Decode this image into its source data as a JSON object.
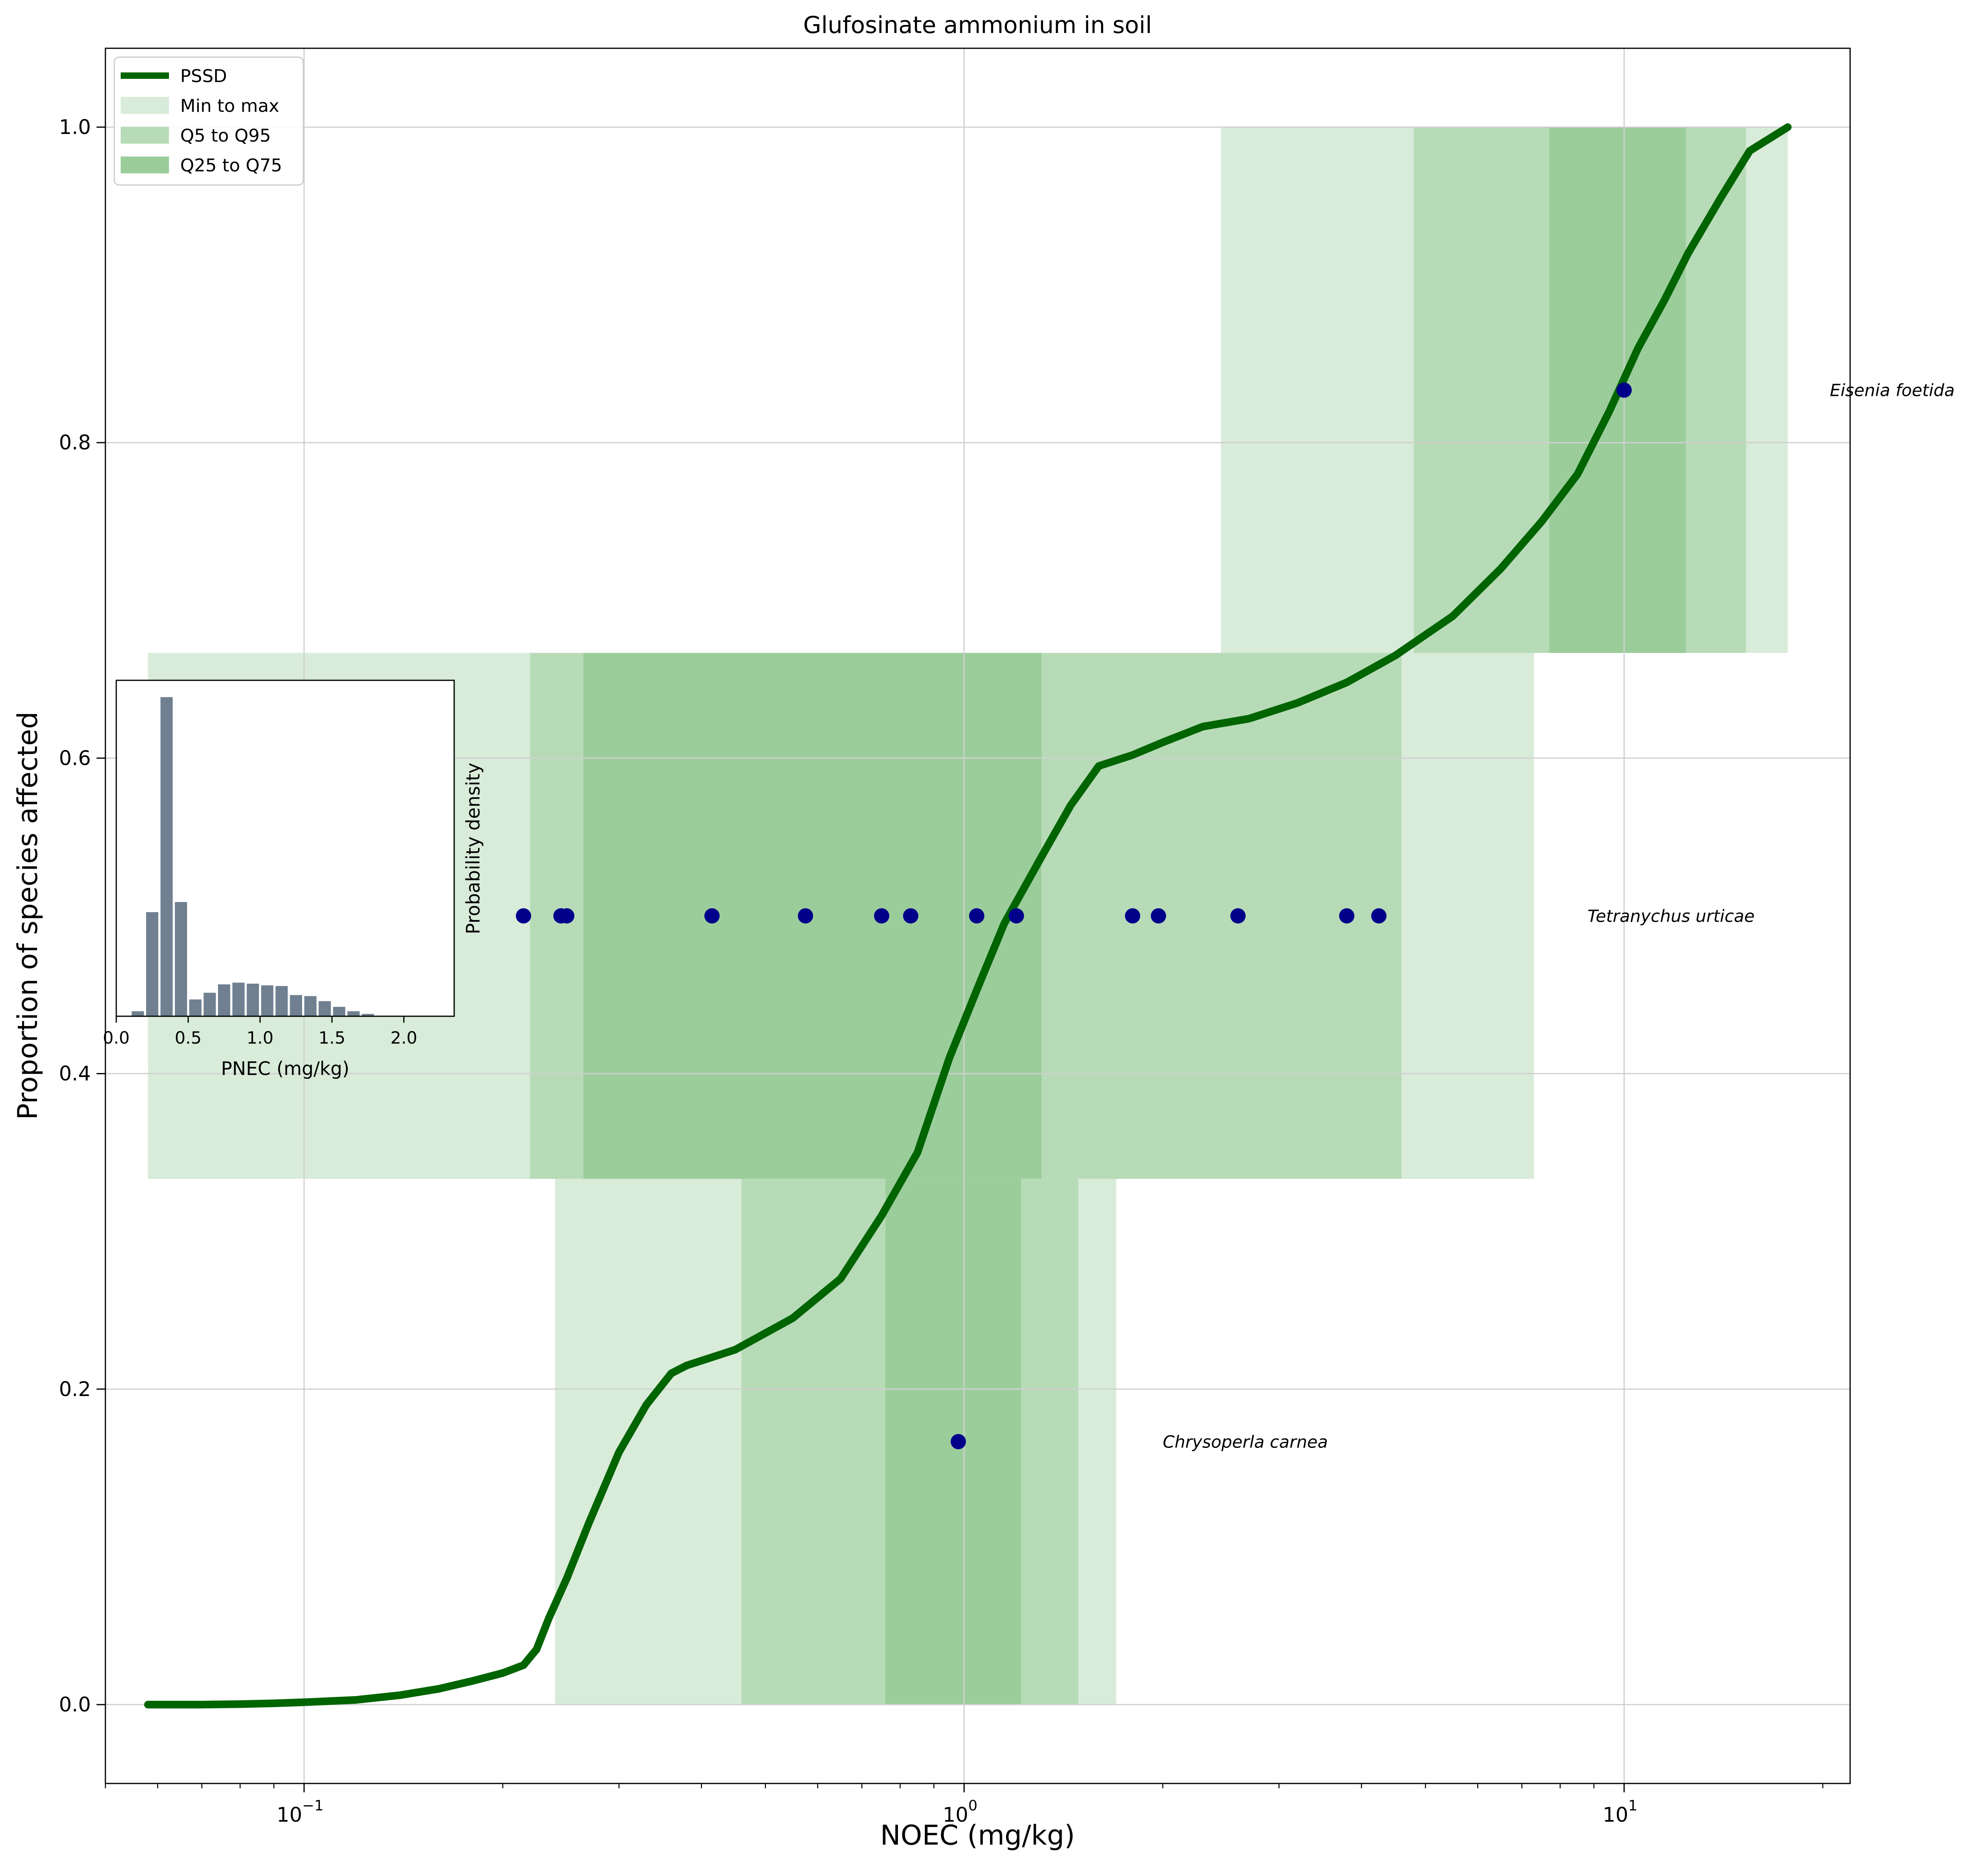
{
  "chart_data": [
    {
      "type": "line",
      "title": "Glufosinate ammonium in soil",
      "xlabel": "NOEC (mg/kg)",
      "ylabel": "Proportion of species affected",
      "xscale": "log",
      "xlim": [
        0.05,
        22
      ],
      "ylim": [
        -0.05,
        1.05
      ],
      "grid": true,
      "legend_position": "top-left",
      "x_ticks": [
        {
          "value": 0.1,
          "base": "10",
          "exp": "−1"
        },
        {
          "value": 1,
          "base": "10",
          "exp": "0"
        },
        {
          "value": 10,
          "base": "10",
          "exp": "1"
        }
      ],
      "y_ticks": [
        {
          "value": 0.0,
          "label": "0.0"
        },
        {
          "value": 0.2,
          "label": "0.2"
        },
        {
          "value": 0.4,
          "label": "0.4"
        },
        {
          "value": 0.6,
          "label": "0.6"
        },
        {
          "value": 0.8,
          "label": "0.8"
        },
        {
          "value": 1.0,
          "label": "1.0"
        }
      ],
      "colors": {
        "pssd": "#006400",
        "min_max": "#d9ebd9",
        "q5_q95": "#b7dbb7",
        "q25_q75": "#9bcd9b",
        "points": "#00008b",
        "grid": "#d0d0d0"
      },
      "legend": [
        {
          "label": "PSSD",
          "kind": "line",
          "color": "#006400"
        },
        {
          "label": "Min to max",
          "kind": "patch",
          "color": "#d9ebd9"
        },
        {
          "label": "Q5 to Q95",
          "kind": "patch",
          "color": "#b7dbb7"
        },
        {
          "label": "Q25 to Q75",
          "kind": "patch",
          "color": "#9bcd9b"
        }
      ],
      "species": [
        {
          "name": "Chrysoperla carnea",
          "y_range": [
            0.0,
            0.3333
          ],
          "min_max": [
            0.24,
            1.7
          ],
          "q5_q95": [
            0.46,
            1.49
          ],
          "q25_q75": [
            0.76,
            1.22
          ],
          "points": [
            {
              "x": 0.98,
              "y": 0.1667
            }
          ],
          "label_x": 2.0,
          "label_y": 0.1667
        },
        {
          "name": "Tetranychus urticae",
          "y_range": [
            0.3333,
            0.6667
          ],
          "min_max": [
            0.058,
            7.3
          ],
          "q5_q95": [
            0.22,
            4.6
          ],
          "q25_q75": [
            0.265,
            1.31
          ],
          "points": [
            {
              "x": 0.215,
              "y": 0.5
            },
            {
              "x": 0.245,
              "y": 0.5
            },
            {
              "x": 0.25,
              "y": 0.5
            },
            {
              "x": 0.415,
              "y": 0.5
            },
            {
              "x": 0.575,
              "y": 0.5
            },
            {
              "x": 0.75,
              "y": 0.5
            },
            {
              "x": 0.83,
              "y": 0.5
            },
            {
              "x": 1.045,
              "y": 0.5
            },
            {
              "x": 1.2,
              "y": 0.5
            },
            {
              "x": 1.8,
              "y": 0.5
            },
            {
              "x": 1.97,
              "y": 0.5
            },
            {
              "x": 2.6,
              "y": 0.5
            },
            {
              "x": 3.8,
              "y": 0.5
            },
            {
              "x": 4.25,
              "y": 0.5
            }
          ],
          "label_x": 8.8,
          "label_y": 0.5
        },
        {
          "name": "Eisenia foetida",
          "y_range": [
            0.6667,
            1.0
          ],
          "min_max": [
            2.45,
            17.7
          ],
          "q5_q95": [
            4.8,
            15.3
          ],
          "q25_q75": [
            7.7,
            12.4
          ],
          "points": [
            {
              "x": 10.0,
              "y": 0.8333
            }
          ],
          "label_x": 20.5,
          "label_y": 0.8333
        }
      ],
      "series": [
        {
          "name": "PSSD",
          "points": [
            [
              0.058,
              0.0
            ],
            [
              0.07,
              0.0
            ],
            [
              0.08,
              0.0003
            ],
            [
              0.09,
              0.0008
            ],
            [
              0.1,
              0.0015
            ],
            [
              0.12,
              0.003
            ],
            [
              0.14,
              0.006
            ],
            [
              0.16,
              0.01
            ],
            [
              0.18,
              0.015
            ],
            [
              0.2,
              0.02
            ],
            [
              0.215,
              0.025
            ],
            [
              0.225,
              0.035
            ],
            [
              0.235,
              0.055
            ],
            [
              0.25,
              0.08
            ],
            [
              0.27,
              0.115
            ],
            [
              0.3,
              0.16
            ],
            [
              0.33,
              0.19
            ],
            [
              0.36,
              0.21
            ],
            [
              0.38,
              0.215
            ],
            [
              0.45,
              0.225
            ],
            [
              0.55,
              0.245
            ],
            [
              0.65,
              0.27
            ],
            [
              0.75,
              0.31
            ],
            [
              0.85,
              0.35
            ],
            [
              0.95,
              0.41
            ],
            [
              1.05,
              0.455
            ],
            [
              1.15,
              0.495
            ],
            [
              1.3,
              0.535
            ],
            [
              1.45,
              0.57
            ],
            [
              1.6,
              0.595
            ],
            [
              1.8,
              0.602
            ],
            [
              2.0,
              0.61
            ],
            [
              2.3,
              0.62
            ],
            [
              2.7,
              0.625
            ],
            [
              3.2,
              0.635
            ],
            [
              3.8,
              0.648
            ],
            [
              4.5,
              0.665
            ],
            [
              5.5,
              0.69
            ],
            [
              6.5,
              0.72
            ],
            [
              7.5,
              0.75
            ],
            [
              8.5,
              0.78
            ],
            [
              9.5,
              0.82
            ],
            [
              10.5,
              0.86
            ],
            [
              11.5,
              0.89
            ],
            [
              12.5,
              0.92
            ],
            [
              14.0,
              0.955
            ],
            [
              15.5,
              0.985
            ],
            [
              17.7,
              1.0
            ]
          ]
        }
      ]
    },
    {
      "type": "bar",
      "xlabel": "PNEC (mg/kg)",
      "ylabel": "Probability density",
      "xlim": [
        0.0,
        2.35
      ],
      "ylim": [
        0.0,
        1.0
      ],
      "grid": false,
      "bar_color": "#708090",
      "bin_width": 0.1,
      "x_ticks": [
        {
          "value": 0.0,
          "label": "0.0"
        },
        {
          "value": 0.5,
          "label": "0.5"
        },
        {
          "value": 1.0,
          "label": "1.0"
        },
        {
          "value": 1.5,
          "label": "1.5"
        },
        {
          "value": 2.0,
          "label": "2.0"
        }
      ],
      "bins": [
        {
          "x": 0.15,
          "value": 0.015
        },
        {
          "x": 0.25,
          "value": 0.31
        },
        {
          "x": 0.35,
          "value": 0.95
        },
        {
          "x": 0.45,
          "value": 0.34
        },
        {
          "x": 0.55,
          "value": 0.05
        },
        {
          "x": 0.65,
          "value": 0.07
        },
        {
          "x": 0.75,
          "value": 0.095
        },
        {
          "x": 0.85,
          "value": 0.1
        },
        {
          "x": 0.95,
          "value": 0.097
        },
        {
          "x": 1.05,
          "value": 0.092
        },
        {
          "x": 1.15,
          "value": 0.09
        },
        {
          "x": 1.25,
          "value": 0.063
        },
        {
          "x": 1.35,
          "value": 0.06
        },
        {
          "x": 1.45,
          "value": 0.045
        },
        {
          "x": 1.55,
          "value": 0.028
        },
        {
          "x": 1.65,
          "value": 0.015
        },
        {
          "x": 1.75,
          "value": 0.007
        }
      ]
    }
  ]
}
